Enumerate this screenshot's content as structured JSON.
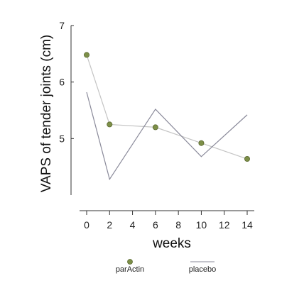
{
  "chart_data": {
    "type": "line",
    "xlabel": "weeks",
    "ylabel": "VAPS of tender joints (cm)",
    "x_ticks": [
      "0",
      "2",
      "4",
      "6",
      "8",
      "10",
      "12",
      "14"
    ],
    "y_ticks": [
      "7",
      "6",
      "5"
    ],
    "xlim": [
      0,
      14
    ],
    "ylim": [
      4,
      7
    ],
    "grid": false,
    "legend_position": "bottom",
    "series": [
      {
        "name": "parActin",
        "marker": "circle",
        "color": "#7d8f48",
        "line_color": "#c4c4c4",
        "x": [
          0,
          2,
          6,
          10,
          14
        ],
        "y": [
          6.48,
          5.25,
          5.2,
          4.92,
          4.64
        ]
      },
      {
        "name": "placebo",
        "marker": "none",
        "color": "#8a8a9a",
        "x": [
          0,
          2,
          6,
          10,
          14
        ],
        "y": [
          5.82,
          4.28,
          5.52,
          4.68,
          5.42
        ]
      }
    ]
  }
}
